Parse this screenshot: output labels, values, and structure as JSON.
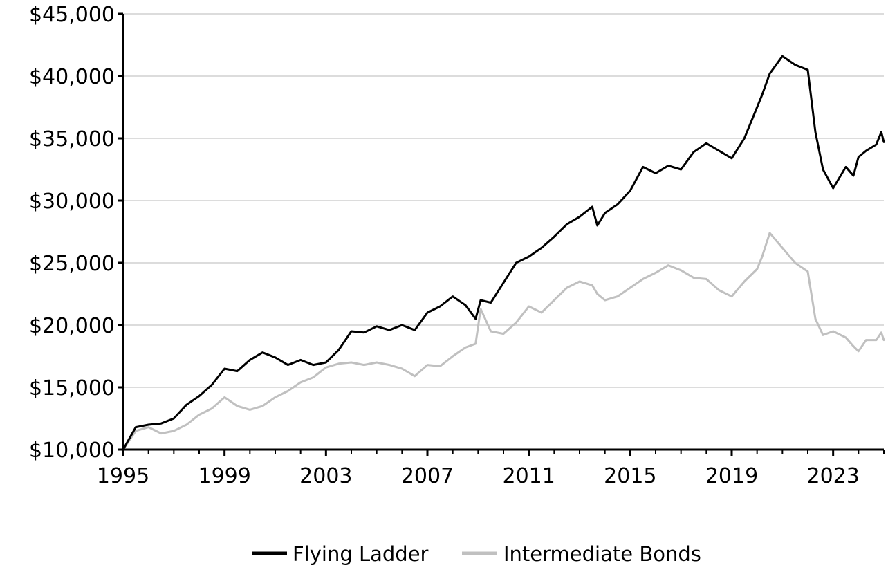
{
  "chart_data": {
    "type": "line",
    "title": "",
    "xlabel": "",
    "ylabel": "",
    "xlim": [
      1995,
      2025
    ],
    "ylim": [
      10000,
      45000
    ],
    "x_ticks": [
      1995,
      1999,
      2003,
      2007,
      2011,
      2015,
      2019,
      2023
    ],
    "x_tick_labels": [
      "1995",
      "1999",
      "2003",
      "2007",
      "2011",
      "2015",
      "2019",
      "2023"
    ],
    "y_ticks": [
      10000,
      15000,
      20000,
      25000,
      30000,
      35000,
      40000,
      45000
    ],
    "y_tick_labels": [
      "$10,000",
      "$15,000",
      "$20,000",
      "$25,000",
      "$30,000",
      "$35,000",
      "$40,000",
      "$45,000"
    ],
    "grid": "horizontal",
    "legend_position": "bottom",
    "series": [
      {
        "name": "Flying Ladder",
        "color": "#000000",
        "x": [
          1995.0,
          1995.5,
          1996.0,
          1996.5,
          1997.0,
          1997.5,
          1998.0,
          1998.5,
          1999.0,
          1999.5,
          2000.0,
          2000.5,
          2001.0,
          2001.5,
          2002.0,
          2002.5,
          2003.0,
          2003.5,
          2004.0,
          2004.5,
          2005.0,
          2005.5,
          2006.0,
          2006.5,
          2007.0,
          2007.5,
          2008.0,
          2008.5,
          2008.9,
          2009.1,
          2009.5,
          2010.0,
          2010.5,
          2011.0,
          2011.5,
          2012.0,
          2012.5,
          2013.0,
          2013.5,
          2013.7,
          2014.0,
          2014.5,
          2015.0,
          2015.5,
          2016.0,
          2016.5,
          2017.0,
          2017.5,
          2018.0,
          2018.5,
          2019.0,
          2019.5,
          2020.0,
          2020.2,
          2020.5,
          2021.0,
          2021.5,
          2022.0,
          2022.3,
          2022.6,
          2023.0,
          2023.5,
          2023.8,
          2024.0,
          2024.3,
          2024.7,
          2024.9,
          2025.0
        ],
        "values": [
          10000,
          11800,
          12000,
          12100,
          12500,
          13600,
          14300,
          15200,
          16500,
          16300,
          17200,
          17800,
          17400,
          16800,
          17200,
          16800,
          17000,
          18000,
          19500,
          19400,
          19900,
          19600,
          20000,
          19600,
          21000,
          21500,
          22300,
          21600,
          20500,
          22000,
          21800,
          23400,
          25000,
          25500,
          26200,
          27100,
          28100,
          28700,
          29500,
          28000,
          29000,
          29700,
          30800,
          32700,
          32200,
          32800,
          32500,
          33900,
          34600,
          34000,
          33400,
          35000,
          37500,
          38500,
          40200,
          41600,
          40900,
          40500,
          35500,
          32500,
          31000,
          32700,
          32000,
          33500,
          34000,
          34500,
          35500,
          34700
        ]
      },
      {
        "name": "Intermediate Bonds",
        "color": "#c0c0c0",
        "x": [
          1995.0,
          1995.5,
          1996.0,
          1996.5,
          1997.0,
          1997.5,
          1998.0,
          1998.5,
          1999.0,
          1999.5,
          2000.0,
          2000.5,
          2001.0,
          2001.5,
          2002.0,
          2002.5,
          2003.0,
          2003.5,
          2004.0,
          2004.5,
          2005.0,
          2005.5,
          2006.0,
          2006.5,
          2007.0,
          2007.5,
          2008.0,
          2008.5,
          2008.9,
          2009.1,
          2009.5,
          2010.0,
          2010.5,
          2011.0,
          2011.5,
          2012.0,
          2012.5,
          2013.0,
          2013.5,
          2013.7,
          2014.0,
          2014.5,
          2015.0,
          2015.5,
          2016.0,
          2016.5,
          2017.0,
          2017.5,
          2018.0,
          2018.5,
          2019.0,
          2019.5,
          2020.0,
          2020.2,
          2020.5,
          2021.0,
          2021.5,
          2022.0,
          2022.3,
          2022.6,
          2023.0,
          2023.5,
          2023.8,
          2024.0,
          2024.3,
          2024.7,
          2024.9,
          2025.0
        ],
        "values": [
          10000,
          11500,
          11800,
          11300,
          11500,
          12000,
          12800,
          13300,
          14200,
          13500,
          13200,
          13500,
          14200,
          14700,
          15400,
          15800,
          16600,
          16900,
          17000,
          16800,
          17000,
          16800,
          16500,
          15900,
          16800,
          16700,
          17500,
          18200,
          18500,
          21300,
          19500,
          19300,
          20200,
          21500,
          21000,
          22000,
          23000,
          23500,
          23200,
          22500,
          22000,
          22300,
          23000,
          23700,
          24200,
          24800,
          24400,
          23800,
          23700,
          22800,
          22300,
          23500,
          24500,
          25500,
          27400,
          26200,
          25000,
          24300,
          20500,
          19200,
          19500,
          19000,
          18300,
          17900,
          18800,
          18800,
          19400,
          18800
        ]
      }
    ]
  }
}
